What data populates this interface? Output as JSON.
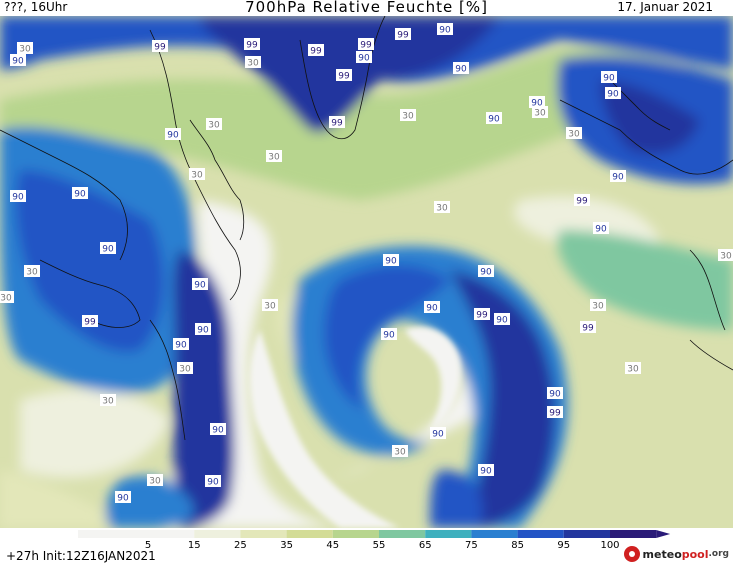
{
  "header": {
    "left": "???, 16Uhr",
    "title": "700hPa Relative Feuchte [%]",
    "right": "17. Januar 2021"
  },
  "footer": {
    "left": "+27h  Init:12Z16JAN2021",
    "brand_prefix": "meteo",
    "brand_name": "pool",
    "brand_suffix": ".org"
  },
  "colorbar": {
    "ticks": [
      "5",
      "15",
      "25",
      "35",
      "45",
      "55",
      "65",
      "75",
      "85",
      "95",
      "100"
    ],
    "colors": [
      "#f4f4f2",
      "#eef0de",
      "#e3e7b9",
      "#d3dc97",
      "#b7d58e",
      "#7fc7a0",
      "#3fb0be",
      "#2a7fd0",
      "#2354c5",
      "#23369e",
      "#2a1b78"
    ]
  },
  "map_labels": [
    {
      "text": "30",
      "kind": "30"
    },
    {
      "text": "90",
      "kind": "90"
    },
    {
      "text": "99",
      "kind": "99"
    },
    {
      "text": "99",
      "kind": "99"
    },
    {
      "text": "99",
      "kind": "99"
    },
    {
      "text": "99",
      "kind": "99"
    },
    {
      "text": "99",
      "kind": "99"
    },
    {
      "text": "90",
      "kind": "90"
    },
    {
      "text": "90",
      "kind": "90"
    },
    {
      "text": "99",
      "kind": "99"
    },
    {
      "text": "30",
      "kind": "30"
    },
    {
      "text": "90",
      "kind": "90"
    },
    {
      "text": "90",
      "kind": "90"
    },
    {
      "text": "90",
      "kind": "90"
    },
    {
      "text": "90",
      "kind": "90"
    },
    {
      "text": "30",
      "kind": "30"
    },
    {
      "text": "99",
      "kind": "99"
    },
    {
      "text": "30",
      "kind": "30"
    },
    {
      "text": "90",
      "kind": "90"
    },
    {
      "text": "30",
      "kind": "30"
    },
    {
      "text": "90",
      "kind": "90"
    },
    {
      "text": "30",
      "kind": "30"
    },
    {
      "text": "30",
      "kind": "30"
    },
    {
      "text": "90",
      "kind": "90"
    },
    {
      "text": "30",
      "kind": "30"
    },
    {
      "text": "90",
      "kind": "90"
    },
    {
      "text": "90",
      "kind": "90"
    },
    {
      "text": "30",
      "kind": "30"
    },
    {
      "text": "90",
      "kind": "90"
    },
    {
      "text": "90",
      "kind": "90"
    },
    {
      "text": "99",
      "kind": "99"
    },
    {
      "text": "90",
      "kind": "90"
    },
    {
      "text": "30",
      "kind": "30"
    },
    {
      "text": "90",
      "kind": "90"
    },
    {
      "text": "30",
      "kind": "30"
    },
    {
      "text": "90",
      "kind": "90"
    },
    {
      "text": "30",
      "kind": "30"
    },
    {
      "text": "30",
      "kind": "30"
    },
    {
      "text": "99",
      "kind": "99"
    },
    {
      "text": "90",
      "kind": "90"
    },
    {
      "text": "90",
      "kind": "90"
    },
    {
      "text": "99",
      "kind": "99"
    },
    {
      "text": "99",
      "kind": "99"
    },
    {
      "text": "30",
      "kind": "30"
    },
    {
      "text": "90",
      "kind": "90"
    },
    {
      "text": "90",
      "kind": "90"
    },
    {
      "text": "30",
      "kind": "30"
    },
    {
      "text": "90",
      "kind": "90"
    },
    {
      "text": "30",
      "kind": "30"
    },
    {
      "text": "90",
      "kind": "90"
    },
    {
      "text": "30",
      "kind": "30"
    },
    {
      "text": "99",
      "kind": "99"
    },
    {
      "text": "90",
      "kind": "90"
    },
    {
      "text": "90",
      "kind": "90"
    },
    {
      "text": "30",
      "kind": "30"
    },
    {
      "text": "90",
      "kind": "90"
    },
    {
      "text": "90",
      "kind": "90"
    },
    {
      "text": "30",
      "kind": "30"
    },
    {
      "text": "90",
      "kind": "90"
    }
  ]
}
